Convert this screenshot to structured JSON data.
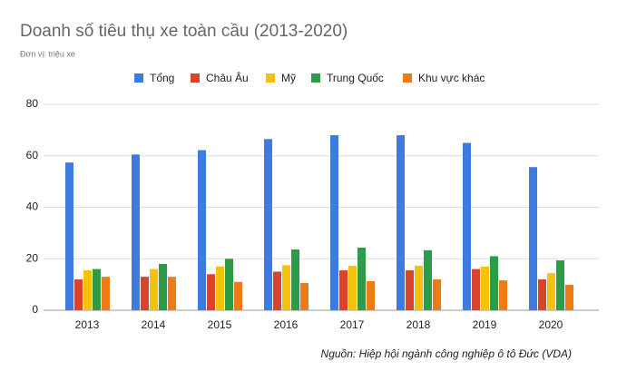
{
  "chart_data": {
    "type": "bar",
    "title": "Doanh số tiêu thụ xe toàn cầu (2013-2020)",
    "subtitle": "Đơn vị: triệu xe",
    "source": "Nguồn: Hiệp hội ngành công nghiệp ô tô Đức (VDA)",
    "categories": [
      "2013",
      "2014",
      "2015",
      "2016",
      "2017",
      "2018",
      "2019",
      "2020"
    ],
    "series": [
      {
        "name": "Tổng",
        "color": "#3d7be0",
        "values": [
          57.4,
          60.5,
          62.2,
          66.5,
          68,
          68,
          65,
          55.6
        ]
      },
      {
        "name": "Châu Âu",
        "color": "#d8442c",
        "values": [
          12,
          13,
          14,
          15,
          15.5,
          15.5,
          16,
          12
        ]
      },
      {
        "name": "Mỹ",
        "color": "#f4c20d",
        "values": [
          15.5,
          16,
          17,
          17.5,
          17.3,
          17.3,
          17,
          14.4
        ]
      },
      {
        "name": "Trung Quốc",
        "color": "#2e9b48",
        "values": [
          16,
          18,
          20,
          23.6,
          24.3,
          23.3,
          21,
          19.4
        ]
      },
      {
        "name": "Khu vực khác",
        "color": "#ef7b18",
        "values": [
          13,
          13,
          11,
          10.6,
          11.3,
          12,
          11.6,
          9.9
        ]
      }
    ],
    "ylim": [
      0,
      80
    ],
    "yticks": [
      0,
      20,
      40,
      60,
      80
    ],
    "grid": true,
    "legend": "top"
  }
}
